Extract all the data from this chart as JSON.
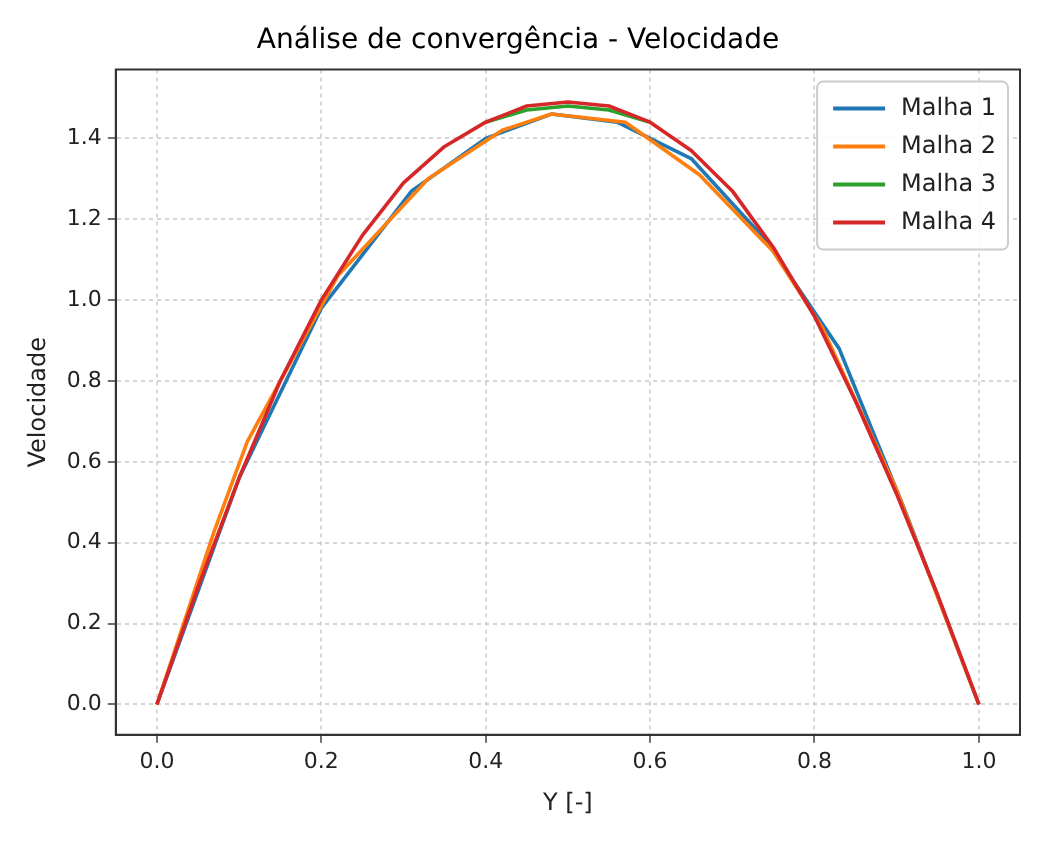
{
  "chart_data": {
    "type": "line",
    "title": "Análise de convergência - Velocidade",
    "xlabel": "Y [-]",
    "ylabel": "Velocidade",
    "xlim": [
      -0.05,
      1.05
    ],
    "xticks": [
      {
        "value": 0,
        "label": "0.0"
      },
      0.2,
      0.4,
      0.6,
      0.8,
      {
        "value": 1,
        "label": "1.0"
      }
    ],
    "ylim": [
      -0.075,
      1.57
    ],
    "yticks": [
      {
        "value": 0,
        "label": "0.0"
      },
      0.2,
      0.4,
      0.6,
      0.8,
      {
        "value": 1,
        "label": "1.0"
      },
      1.2,
      1.4
    ],
    "grid": true,
    "legend": "top right",
    "marker": "none",
    "line_style": "solid",
    "series": [
      {
        "name": "Malha 1",
        "color": "#1f77b4",
        "x": [
          0,
          0.1,
          0.2,
          0.31,
          0.4,
          0.48,
          0.56,
          0.65,
          0.74,
          0.83,
          0.91,
          1
        ],
        "values": [
          0,
          0.56,
          0.98,
          1.27,
          1.4,
          1.46,
          1.44,
          1.35,
          1.15,
          0.88,
          0.48,
          0
        ]
      },
      {
        "name": "Malha 2",
        "color": "#ff7f0e",
        "x": [
          0,
          0.07,
          0.11,
          0.22,
          0.33,
          0.42,
          0.48,
          0.57,
          0.66,
          0.75,
          0.81,
          0.9,
          1
        ],
        "values": [
          0,
          0.43,
          0.65,
          1.06,
          1.3,
          1.42,
          1.46,
          1.44,
          1.31,
          1.12,
          0.93,
          0.53,
          0
        ]
      },
      {
        "name": "Malha 3",
        "color": "#2ca02c",
        "x": [
          0.4,
          0.45,
          0.5,
          0.55,
          0.6
        ],
        "values": [
          1.44,
          1.47,
          1.48,
          1.47,
          1.44
        ]
      },
      {
        "name": "Malha 4",
        "color": "#d62728",
        "x": [
          0,
          0.05,
          0.1,
          0.15,
          0.2,
          0.25,
          0.3,
          0.35,
          0.4,
          0.45,
          0.5,
          0.55,
          0.6,
          0.65,
          0.7,
          0.75,
          0.8,
          0.85,
          0.9,
          0.95,
          1
        ],
        "values": [
          0,
          0.29,
          0.56,
          0.8,
          1.0,
          1.16,
          1.29,
          1.38,
          1.44,
          1.48,
          1.49,
          1.48,
          1.44,
          1.37,
          1.27,
          1.13,
          0.96,
          0.75,
          0.52,
          0.27,
          0
        ]
      }
    ]
  }
}
